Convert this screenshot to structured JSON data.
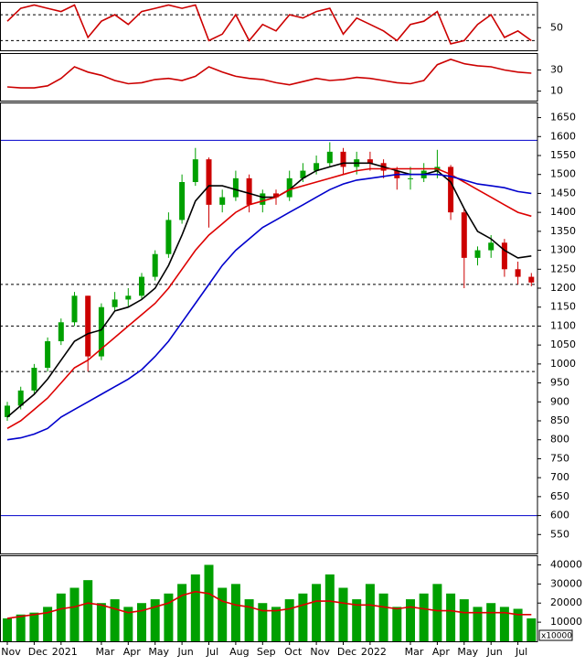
{
  "chart_data": [
    {
      "type": "line",
      "ylim": [
        15,
        90
      ],
      "yticks": [
        50
      ],
      "hlines": [
        {
          "value": 70,
          "style": "dashed",
          "color": "#000000"
        },
        {
          "value": 30,
          "style": "dashed",
          "color": "#000000"
        }
      ],
      "series": [
        {
          "color": "#cc0000",
          "values": [
            60,
            80,
            85,
            80,
            75,
            85,
            35,
            60,
            70,
            55,
            75,
            80,
            85,
            80,
            85,
            30,
            40,
            70,
            30,
            55,
            45,
            70,
            65,
            75,
            80,
            40,
            65,
            55,
            45,
            30,
            55,
            60,
            75,
            25,
            30,
            55,
            70,
            35,
            45,
            30
          ]
        }
      ]
    },
    {
      "type": "line",
      "ylim": [
        1,
        46
      ],
      "yticks": [
        10,
        30
      ],
      "series": [
        {
          "color": "#cc0000",
          "values": [
            14,
            13,
            13,
            15,
            22,
            33,
            28,
            25,
            20,
            17,
            18,
            21,
            22,
            20,
            24,
            33,
            28,
            24,
            22,
            21,
            18,
            16,
            19,
            22,
            20,
            21,
            23,
            22,
            20,
            18,
            17,
            20,
            35,
            40,
            36,
            34,
            33,
            30,
            28,
            27
          ]
        }
      ]
    },
    {
      "type": "candlestick",
      "ylim": [
        500,
        1690
      ],
      "yticks": [
        550,
        600,
        650,
        700,
        750,
        800,
        850,
        900,
        950,
        1000,
        1050,
        1100,
        1150,
        1200,
        1250,
        1300,
        1350,
        1400,
        1450,
        1500,
        1550,
        1600,
        1650
      ],
      "up_color": "#00a000",
      "down_color": "#cc0000",
      "hlines": [
        {
          "value": 1590,
          "style": "solid",
          "color": "#0000cc"
        },
        {
          "value": 600,
          "style": "solid",
          "color": "#0000cc"
        },
        {
          "value": 1210,
          "style": "dashed",
          "color": "#000000"
        },
        {
          "value": 1100,
          "style": "dashed",
          "color": "#000000"
        },
        {
          "value": 980,
          "style": "dashed",
          "color": "#000000"
        }
      ],
      "open": [
        860,
        890,
        930,
        990,
        1060,
        1110,
        1180,
        1020,
        1150,
        1170,
        1180,
        1230,
        1290,
        1380,
        1480,
        1540,
        1420,
        1440,
        1490,
        1420,
        1450,
        1440,
        1490,
        1510,
        1530,
        1560,
        1520,
        1540,
        1530,
        1510,
        1490,
        1490,
        1510,
        1520,
        1400,
        1280,
        1300,
        1320,
        1250,
        1230
      ],
      "high": [
        900,
        940,
        1000,
        1070,
        1120,
        1190,
        1180,
        1160,
        1190,
        1200,
        1240,
        1300,
        1400,
        1500,
        1570,
        1545,
        1460,
        1510,
        1500,
        1460,
        1460,
        1510,
        1530,
        1550,
        1585,
        1570,
        1560,
        1560,
        1540,
        1520,
        1520,
        1530,
        1565,
        1525,
        1410,
        1310,
        1340,
        1330,
        1270,
        1240
      ],
      "low": [
        850,
        880,
        920,
        980,
        1050,
        1100,
        980,
        1010,
        1140,
        1150,
        1170,
        1220,
        1280,
        1370,
        1470,
        1360,
        1400,
        1430,
        1400,
        1400,
        1420,
        1430,
        1480,
        1500,
        1520,
        1500,
        1500,
        1510,
        1490,
        1460,
        1460,
        1480,
        1490,
        1380,
        1200,
        1260,
        1280,
        1230,
        1210,
        1205
      ],
      "close": [
        890,
        930,
        990,
        1060,
        1110,
        1180,
        1020,
        1150,
        1170,
        1180,
        1230,
        1290,
        1380,
        1480,
        1540,
        1420,
        1440,
        1490,
        1420,
        1450,
        1440,
        1490,
        1510,
        1530,
        1560,
        1520,
        1540,
        1530,
        1510,
        1490,
        1490,
        1510,
        1520,
        1400,
        1280,
        1300,
        1320,
        1250,
        1230,
        1215
      ],
      "series": [
        {
          "color": "#000000",
          "values": [
            860,
            890,
            920,
            960,
            1010,
            1060,
            1080,
            1090,
            1140,
            1150,
            1170,
            1200,
            1260,
            1340,
            1430,
            1470,
            1470,
            1460,
            1450,
            1440,
            1440,
            1460,
            1490,
            1510,
            1520,
            1530,
            1530,
            1530,
            1520,
            1510,
            1500,
            1500,
            1510,
            1480,
            1410,
            1350,
            1330,
            1300,
            1280,
            1285
          ]
        },
        {
          "color": "#dd0000",
          "values": [
            830,
            850,
            880,
            910,
            950,
            990,
            1010,
            1040,
            1070,
            1100,
            1130,
            1160,
            1200,
            1250,
            1300,
            1340,
            1370,
            1400,
            1420,
            1430,
            1440,
            1460,
            1470,
            1480,
            1490,
            1500,
            1510,
            1515,
            1515,
            1515,
            1515,
            1515,
            1515,
            1500,
            1480,
            1460,
            1440,
            1420,
            1400,
            1390
          ]
        },
        {
          "color": "#0000cc",
          "values": [
            800,
            805,
            815,
            830,
            860,
            880,
            900,
            920,
            940,
            960,
            985,
            1020,
            1060,
            1110,
            1160,
            1210,
            1260,
            1300,
            1330,
            1360,
            1380,
            1400,
            1420,
            1440,
            1460,
            1475,
            1485,
            1490,
            1495,
            1500,
            1500,
            1500,
            1500,
            1495,
            1485,
            1475,
            1470,
            1465,
            1455,
            1450
          ]
        }
      ]
    },
    {
      "type": "bar",
      "ylim": [
        0,
        45000
      ],
      "yticks": [
        10000,
        20000,
        30000,
        40000
      ],
      "y_unit": "x10000",
      "color": "#00a000",
      "categories": [
        "Nov",
        null,
        "Dec",
        null,
        "2021",
        null,
        null,
        "Mar",
        null,
        "Apr",
        null,
        "May",
        null,
        "Jun",
        null,
        "Jul",
        null,
        "Aug",
        null,
        "Sep",
        null,
        "Oct",
        null,
        "Nov",
        null,
        "Dec",
        null,
        "2022",
        null,
        null,
        "Mar",
        null,
        "Apr",
        null,
        "May",
        null,
        "Jun",
        null,
        "Jul",
        null
      ],
      "values": [
        12000,
        14000,
        15000,
        18000,
        25000,
        28000,
        32000,
        20000,
        22000,
        18000,
        20000,
        22000,
        25000,
        30000,
        35000,
        40000,
        28000,
        30000,
        22000,
        20000,
        18000,
        22000,
        25000,
        30000,
        35000,
        28000,
        22000,
        30000,
        25000,
        18000,
        22000,
        25000,
        30000,
        25000,
        22000,
        18000,
        20000,
        18000,
        17000,
        12000
      ],
      "series": [
        {
          "color": "#dd0000",
          "values": [
            12000,
            13000,
            14000,
            15000,
            17000,
            18000,
            20000,
            19000,
            17000,
            15000,
            16000,
            18000,
            20000,
            24000,
            26000,
            25000,
            21000,
            19000,
            18000,
            16000,
            16000,
            17000,
            19000,
            21000,
            21000,
            20000,
            19000,
            19000,
            18000,
            17000,
            18000,
            17000,
            16000,
            16000,
            15000,
            15000,
            15000,
            15000,
            14000,
            14000
          ]
        }
      ]
    }
  ]
}
